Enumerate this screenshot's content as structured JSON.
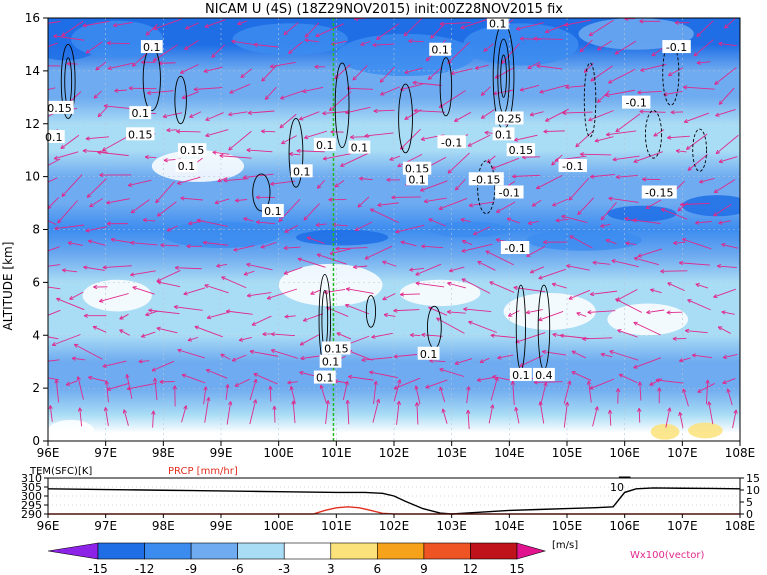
{
  "title": "NICAM U (4S) (18Z29NOV2015) init:00Z28NOV2015 fix",
  "colors": {
    "contour_black": "#000000",
    "vector": "#e0288c",
    "reference_line": "#22bb22",
    "temperature_line": "#000000",
    "precip_line": "#e03020"
  },
  "chart_data": [
    {
      "type": "heatmap",
      "title": "NICAM U (4S) (18Z29NOV2015) init:00Z28NOV2015 fix",
      "xlabel": "",
      "ylabel": "ALTITUDE [km]",
      "xlim": [
        96,
        108
      ],
      "ylim": [
        0,
        16
      ],
      "x_ticks": [
        "96E",
        "97E",
        "98E",
        "99E",
        "100E",
        "101E",
        "102E",
        "103E",
        "104E",
        "105E",
        "106E",
        "107E",
        "108E"
      ],
      "x_tick_values": [
        96,
        97,
        98,
        99,
        100,
        101,
        102,
        103,
        104,
        105,
        106,
        107,
        108
      ],
      "y_ticks": [
        "0",
        "2",
        "4",
        "6",
        "8",
        "10",
        "12",
        "14",
        "16"
      ],
      "y_tick_values": [
        0,
        2,
        4,
        6,
        8,
        10,
        12,
        14,
        16
      ],
      "u_bands": [
        {
          "z": 15.0,
          "u": -13
        },
        {
          "z": 14.0,
          "u": -9
        },
        {
          "z": 13.0,
          "u": -8
        },
        {
          "z": 12.0,
          "u": -6
        },
        {
          "z": 11.0,
          "u": -5
        },
        {
          "z": 10.0,
          "u": -7
        },
        {
          "z": 9.0,
          "u": -9
        },
        {
          "z": 8.0,
          "u": -12
        },
        {
          "z": 7.0,
          "u": -9
        },
        {
          "z": 6.0,
          "u": -6
        },
        {
          "z": 5.0,
          "u": -4
        },
        {
          "z": 4.0,
          "u": -6
        },
        {
          "z": 3.0,
          "u": -8
        },
        {
          "z": 2.0,
          "u": -9
        },
        {
          "z": 1.0,
          "u": -5
        },
        {
          "z": 0.3,
          "u": 1
        }
      ],
      "w_contour_labels": [
        {
          "x": 97.8,
          "z": 14.9,
          "text": "0.1"
        },
        {
          "x": 96.2,
          "z": 12.6,
          "text": "0.15"
        },
        {
          "x": 96.1,
          "z": 11.5,
          "text": "0.1"
        },
        {
          "x": 97.6,
          "z": 12.4,
          "text": "0.1"
        },
        {
          "x": 97.6,
          "z": 11.6,
          "text": "0.15"
        },
        {
          "x": 98.5,
          "z": 11.0,
          "text": "0.15"
        },
        {
          "x": 98.4,
          "z": 10.4,
          "text": "0.1"
        },
        {
          "x": 100.8,
          "z": 11.2,
          "text": "0.1"
        },
        {
          "x": 100.4,
          "z": 10.2,
          "text": "0.1"
        },
        {
          "x": 101.4,
          "z": 11.1,
          "text": "0.1"
        },
        {
          "x": 102.8,
          "z": 14.8,
          "text": "0.1"
        },
        {
          "x": 102.4,
          "z": 10.3,
          "text": "0.15"
        },
        {
          "x": 102.4,
          "z": 9.9,
          "text": "0.1"
        },
        {
          "x": 103.8,
          "z": 15.8,
          "text": "0.1"
        },
        {
          "x": 103.0,
          "z": 11.3,
          "text": "-0.1"
        },
        {
          "x": 104.0,
          "z": 12.2,
          "text": "0.25"
        },
        {
          "x": 103.9,
          "z": 11.6,
          "text": "0.1"
        },
        {
          "x": 104.2,
          "z": 11.0,
          "text": "0.15"
        },
        {
          "x": 103.6,
          "z": 9.9,
          "text": "-0.15"
        },
        {
          "x": 104.0,
          "z": 9.4,
          "text": "-0.1"
        },
        {
          "x": 105.1,
          "z": 10.4,
          "text": "-0.1"
        },
        {
          "x": 104.1,
          "z": 7.3,
          "text": "-0.1"
        },
        {
          "x": 106.9,
          "z": 14.9,
          "text": "-0.1"
        },
        {
          "x": 106.2,
          "z": 12.8,
          "text": "-0.1"
        },
        {
          "x": 106.6,
          "z": 9.4,
          "text": "-0.15"
        },
        {
          "x": 99.9,
          "z": 8.7,
          "text": "0.1"
        },
        {
          "x": 101.0,
          "z": 3.5,
          "text": "0.15"
        },
        {
          "x": 100.9,
          "z": 3.0,
          "text": "0.1"
        },
        {
          "x": 100.8,
          "z": 2.4,
          "text": "0.1"
        },
        {
          "x": 102.6,
          "z": 3.3,
          "text": "0.1"
        },
        {
          "x": 104.2,
          "z": 2.5,
          "text": "0.1"
        },
        {
          "x": 104.6,
          "z": 2.5,
          "text": "0.4"
        }
      ],
      "reference_lon": 100.95,
      "colorbar": {
        "levels": [
          -15,
          -12,
          -9,
          -6,
          -3,
          3,
          6,
          9,
          12,
          15
        ],
        "labels": [
          "-15",
          "-12",
          "-9",
          "-6",
          "-3",
          "3",
          "6",
          "9",
          "12",
          "15"
        ],
        "colors": [
          "#8e23e8",
          "#1f6ee6",
          "#3c8cf0",
          "#6fabf0",
          "#a9dcf5",
          "#ffffff",
          "#fbe27a",
          "#f7a21b",
          "#ef5424",
          "#c0121a",
          "#e1138f"
        ],
        "unit": "[m/s]"
      },
      "vector_label": "Wx100(vector)"
    },
    {
      "type": "line",
      "xlim": [
        96,
        108
      ],
      "x_ticks": [
        "96E",
        "97E",
        "98E",
        "99E",
        "100E",
        "101E",
        "102E",
        "103E",
        "104E",
        "105E",
        "106E",
        "107E",
        "108E"
      ],
      "x_tick_values": [
        96,
        97,
        98,
        99,
        100,
        101,
        102,
        103,
        104,
        105,
        106,
        107,
        108
      ],
      "left_axis_label": "TEM(SFC)[K]",
      "left_ylim": [
        290,
        310
      ],
      "left_ticks": [
        "290",
        "295",
        "300",
        "305",
        "310"
      ],
      "right_axis_label": "PRCP [mm/hr]",
      "right_ylim": [
        0,
        15
      ],
      "right_ticks": [
        "0",
        "5",
        "10",
        "15"
      ],
      "series": [
        {
          "name": "TEM(SFC)[K]",
          "axis": "left",
          "x": [
            96,
            96.5,
            97,
            97.5,
            98,
            98.5,
            99,
            99.5,
            100,
            100.5,
            101,
            101.5,
            101.8,
            102,
            102.2,
            102.5,
            102.8,
            103,
            103.5,
            104,
            104.5,
            105,
            105.5,
            105.8,
            106,
            106.2,
            106.5,
            107,
            107.5,
            108
          ],
          "values": [
            304,
            303.8,
            303.6,
            303.4,
            303.2,
            303,
            302.8,
            302.6,
            302.4,
            302.2,
            302,
            302,
            301.5,
            300,
            297,
            293,
            290.5,
            290,
            291,
            292,
            292.5,
            293,
            293.5,
            294,
            302,
            304,
            304.5,
            304.3,
            304.2,
            304
          ]
        },
        {
          "name": "PRCP [mm/hr]",
          "axis": "right",
          "x": [
            96,
            100.6,
            100.8,
            101,
            101.2,
            101.4,
            101.6,
            101.8,
            102,
            108
          ],
          "values": [
            0,
            0,
            1.5,
            2.6,
            3,
            2.6,
            1.5,
            0.3,
            0,
            0
          ]
        }
      ],
      "annotations": [
        "10"
      ]
    }
  ]
}
